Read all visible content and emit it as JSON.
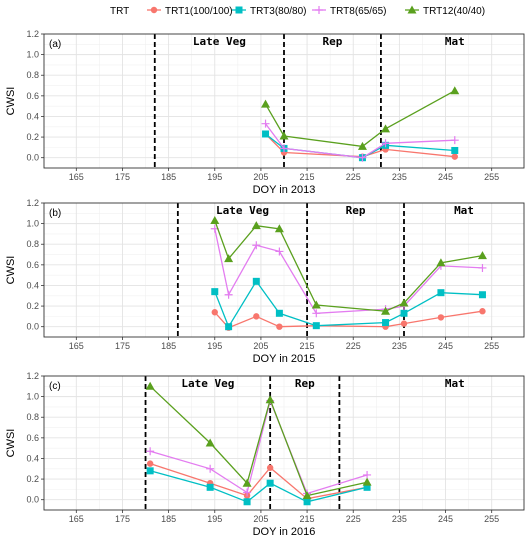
{
  "chart_data": {
    "type": "line",
    "legend": {
      "title": "TRT",
      "placement": "top",
      "entries": [
        {
          "label": "TRT1(100/100)",
          "color": "#F8766D",
          "marker": "circle"
        },
        {
          "label": "TRT3(80/80)",
          "color": "#00BFC4",
          "marker": "square"
        },
        {
          "label": "TRT8(65/65)",
          "color": "#E37CF0",
          "marker": "plus"
        },
        {
          "label": "TRT12(40/40)",
          "color": "#5AA01E",
          "marker": "triangle"
        }
      ]
    },
    "grid": true,
    "panels": [
      {
        "label": "(a)",
        "xlabel": "DOY in 2013",
        "ylabel": "CWSI",
        "xlim": [
          158,
          262
        ],
        "ylim": [
          -0.1,
          1.2
        ],
        "xticks": [
          "165",
          "175",
          "185",
          "195",
          "205",
          "215",
          "225",
          "235",
          "245",
          "255"
        ],
        "yticks": [
          "0.0",
          "0.2",
          "0.4",
          "0.6",
          "0.8",
          "1.0",
          "1.2"
        ],
        "phase_lines": [
          182,
          210,
          231
        ],
        "phases": [
          {
            "name": "Late Veg",
            "x": 196
          },
          {
            "name": "Rep",
            "x": 220.5
          },
          {
            "name": "Mat",
            "x": 247
          }
        ],
        "series": [
          {
            "name": "TRT1(100/100)",
            "x": [
              206,
              210,
              227,
              232,
              247
            ],
            "y": [
              0.23,
              0.05,
              0.01,
              0.08,
              0.01
            ]
          },
          {
            "name": "TRT3(80/80)",
            "x": [
              206,
              210,
              227,
              232,
              247
            ],
            "y": [
              0.23,
              0.09,
              0.0,
              0.12,
              0.07
            ]
          },
          {
            "name": "TRT8(65/65)",
            "x": [
              206,
              210,
              227,
              232,
              247
            ],
            "y": [
              0.33,
              0.09,
              0.0,
              0.14,
              0.17
            ]
          },
          {
            "name": "TRT12(40/40)",
            "x": [
              206,
              210,
              227,
              232,
              247
            ],
            "y": [
              0.52,
              0.21,
              0.11,
              0.28,
              0.65
            ]
          }
        ]
      },
      {
        "label": "(b)",
        "xlabel": "DOY in 2015",
        "ylabel": "CWSI",
        "xlim": [
          158,
          262
        ],
        "ylim": [
          -0.1,
          1.2
        ],
        "xticks": [
          "165",
          "175",
          "185",
          "195",
          "205",
          "215",
          "225",
          "235",
          "245",
          "255"
        ],
        "yticks": [
          "0.0",
          "0.2",
          "0.4",
          "0.6",
          "0.8",
          "1.0",
          "1.2"
        ],
        "phase_lines": [
          187,
          215,
          236
        ],
        "phases": [
          {
            "name": "Late Veg",
            "x": 201
          },
          {
            "name": "Rep",
            "x": 225.5
          },
          {
            "name": "Mat",
            "x": 249
          }
        ],
        "series": [
          {
            "name": "TRT1(100/100)",
            "x": [
              195,
              198,
              204,
              209,
              217,
              232,
              236,
              244,
              253
            ],
            "y": [
              0.14,
              -0.01,
              0.1,
              0.0,
              0.01,
              0.0,
              0.03,
              0.09,
              0.15
            ]
          },
          {
            "name": "TRT3(80/80)",
            "x": [
              195,
              198,
              204,
              209,
              217,
              232,
              236,
              244,
              253
            ],
            "y": [
              0.34,
              0.0,
              0.44,
              0.13,
              0.01,
              0.04,
              0.13,
              0.33,
              0.31
            ]
          },
          {
            "name": "TRT8(65/65)",
            "x": [
              195,
              198,
              204,
              209,
              217,
              232,
              236,
              244,
              253
            ],
            "y": [
              0.95,
              0.31,
              0.79,
              0.73,
              0.13,
              0.17,
              0.2,
              0.59,
              0.57
            ]
          },
          {
            "name": "TRT12(40/40)",
            "x": [
              195,
              198,
              204,
              209,
              217,
              232,
              236,
              244,
              253
            ],
            "y": [
              1.03,
              0.66,
              0.98,
              0.95,
              0.21,
              0.15,
              0.23,
              0.62,
              0.69
            ]
          }
        ]
      },
      {
        "label": "(c)",
        "xlabel": "DOY in 2016",
        "ylabel": "CWSI",
        "xlim": [
          158,
          262
        ],
        "ylim": [
          -0.1,
          1.2
        ],
        "xticks": [
          "165",
          "175",
          "185",
          "195",
          "205",
          "215",
          "225",
          "235",
          "245",
          "255"
        ],
        "yticks": [
          "0.0",
          "0.2",
          "0.4",
          "0.6",
          "0.8",
          "1.0",
          "1.2"
        ],
        "phase_lines": [
          180,
          207,
          222
        ],
        "phases": [
          {
            "name": "Late Veg",
            "x": 193.5
          },
          {
            "name": "Rep",
            "x": 214.5
          },
          {
            "name": "Mat",
            "x": 247
          }
        ],
        "series": [
          {
            "name": "TRT1(100/100)",
            "x": [
              181,
              194,
              202,
              207,
              215,
              228
            ],
            "y": [
              0.35,
              0.16,
              0.04,
              0.31,
              0.01,
              0.12
            ]
          },
          {
            "name": "TRT3(80/80)",
            "x": [
              181,
              194,
              202,
              207,
              215,
              228
            ],
            "y": [
              0.28,
              0.12,
              -0.02,
              0.16,
              -0.02,
              0.12
            ]
          },
          {
            "name": "TRT8(65/65)",
            "x": [
              181,
              194,
              202,
              207,
              215,
              228
            ],
            "y": [
              0.47,
              0.3,
              0.07,
              0.96,
              0.06,
              0.24
            ]
          },
          {
            "name": "TRT12(40/40)",
            "x": [
              181,
              194,
              202,
              207,
              215,
              228
            ],
            "y": [
              1.1,
              0.55,
              0.16,
              0.97,
              0.04,
              0.17
            ]
          }
        ]
      }
    ]
  }
}
